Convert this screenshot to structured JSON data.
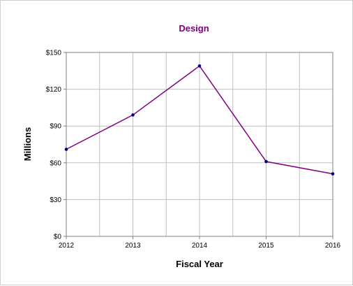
{
  "chart_data": {
    "type": "line",
    "title": "Design",
    "xlabel": "Fiscal Year",
    "ylabel": "Millions",
    "categories": [
      "2012",
      "2013",
      "2014",
      "2015",
      "2016"
    ],
    "series": [
      {
        "values": [
          71,
          99,
          139,
          61,
          51
        ]
      }
    ],
    "ylim": [
      0,
      150
    ],
    "yticks": [
      0,
      30,
      60,
      90,
      120,
      150
    ],
    "ytick_labels": [
      "$0",
      "$30",
      "$60",
      "$90",
      "$120",
      "$150"
    ],
    "grid": true,
    "legend": "none",
    "colors": {
      "title": "#800080",
      "line": "#800080",
      "marker": "#000080",
      "grid": "#c0c0c0",
      "axis": "#808080"
    }
  }
}
